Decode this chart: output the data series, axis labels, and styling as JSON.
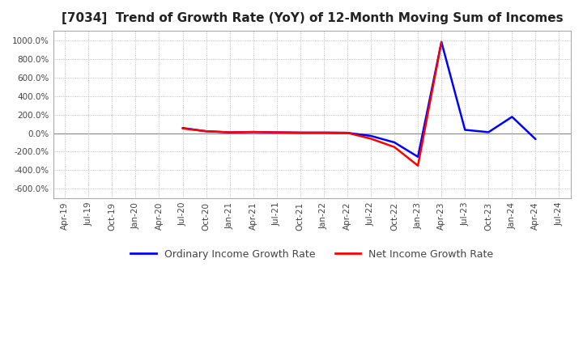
{
  "title": "[7034]  Trend of Growth Rate (YoY) of 12-Month Moving Sum of Incomes",
  "legend_ordinary": "Ordinary Income Growth Rate",
  "legend_net": "Net Income Growth Rate",
  "color_ordinary": "#0000FF",
  "color_net": "#FF0000",
  "ylim": [
    -700,
    1100
  ],
  "yticks": [
    -600,
    -400,
    -200,
    0,
    200,
    400,
    600,
    800,
    1000
  ],
  "background_color": "#FFFFFF",
  "plot_bg_color": "#FFFFFF",
  "grid_color": "#AAAAAA",
  "xtick_labels": [
    "Apr-19",
    "Jul-19",
    "Oct-19",
    "Jan-20",
    "Apr-20",
    "Jul-20",
    "Oct-20",
    "Jan-21",
    "Apr-21",
    "Jul-21",
    "Oct-21",
    "Jan-22",
    "Apr-22",
    "Jul-22",
    "Oct-22",
    "Jan-23",
    "Apr-23",
    "Jul-23",
    "Oct-23",
    "Jan-24",
    "Apr-24",
    "Jul-24"
  ],
  "values_ordinary": [
    null,
    null,
    null,
    null,
    null,
    55,
    20,
    8,
    12,
    8,
    5,
    5,
    3,
    -30,
    -100,
    -255,
    980,
    35,
    10,
    175,
    -65,
    null
  ],
  "values_net": [
    null,
    null,
    null,
    null,
    null,
    50,
    20,
    8,
    12,
    8,
    5,
    5,
    3,
    -60,
    -150,
    -350,
    980,
    null,
    null,
    null,
    null,
    null
  ]
}
